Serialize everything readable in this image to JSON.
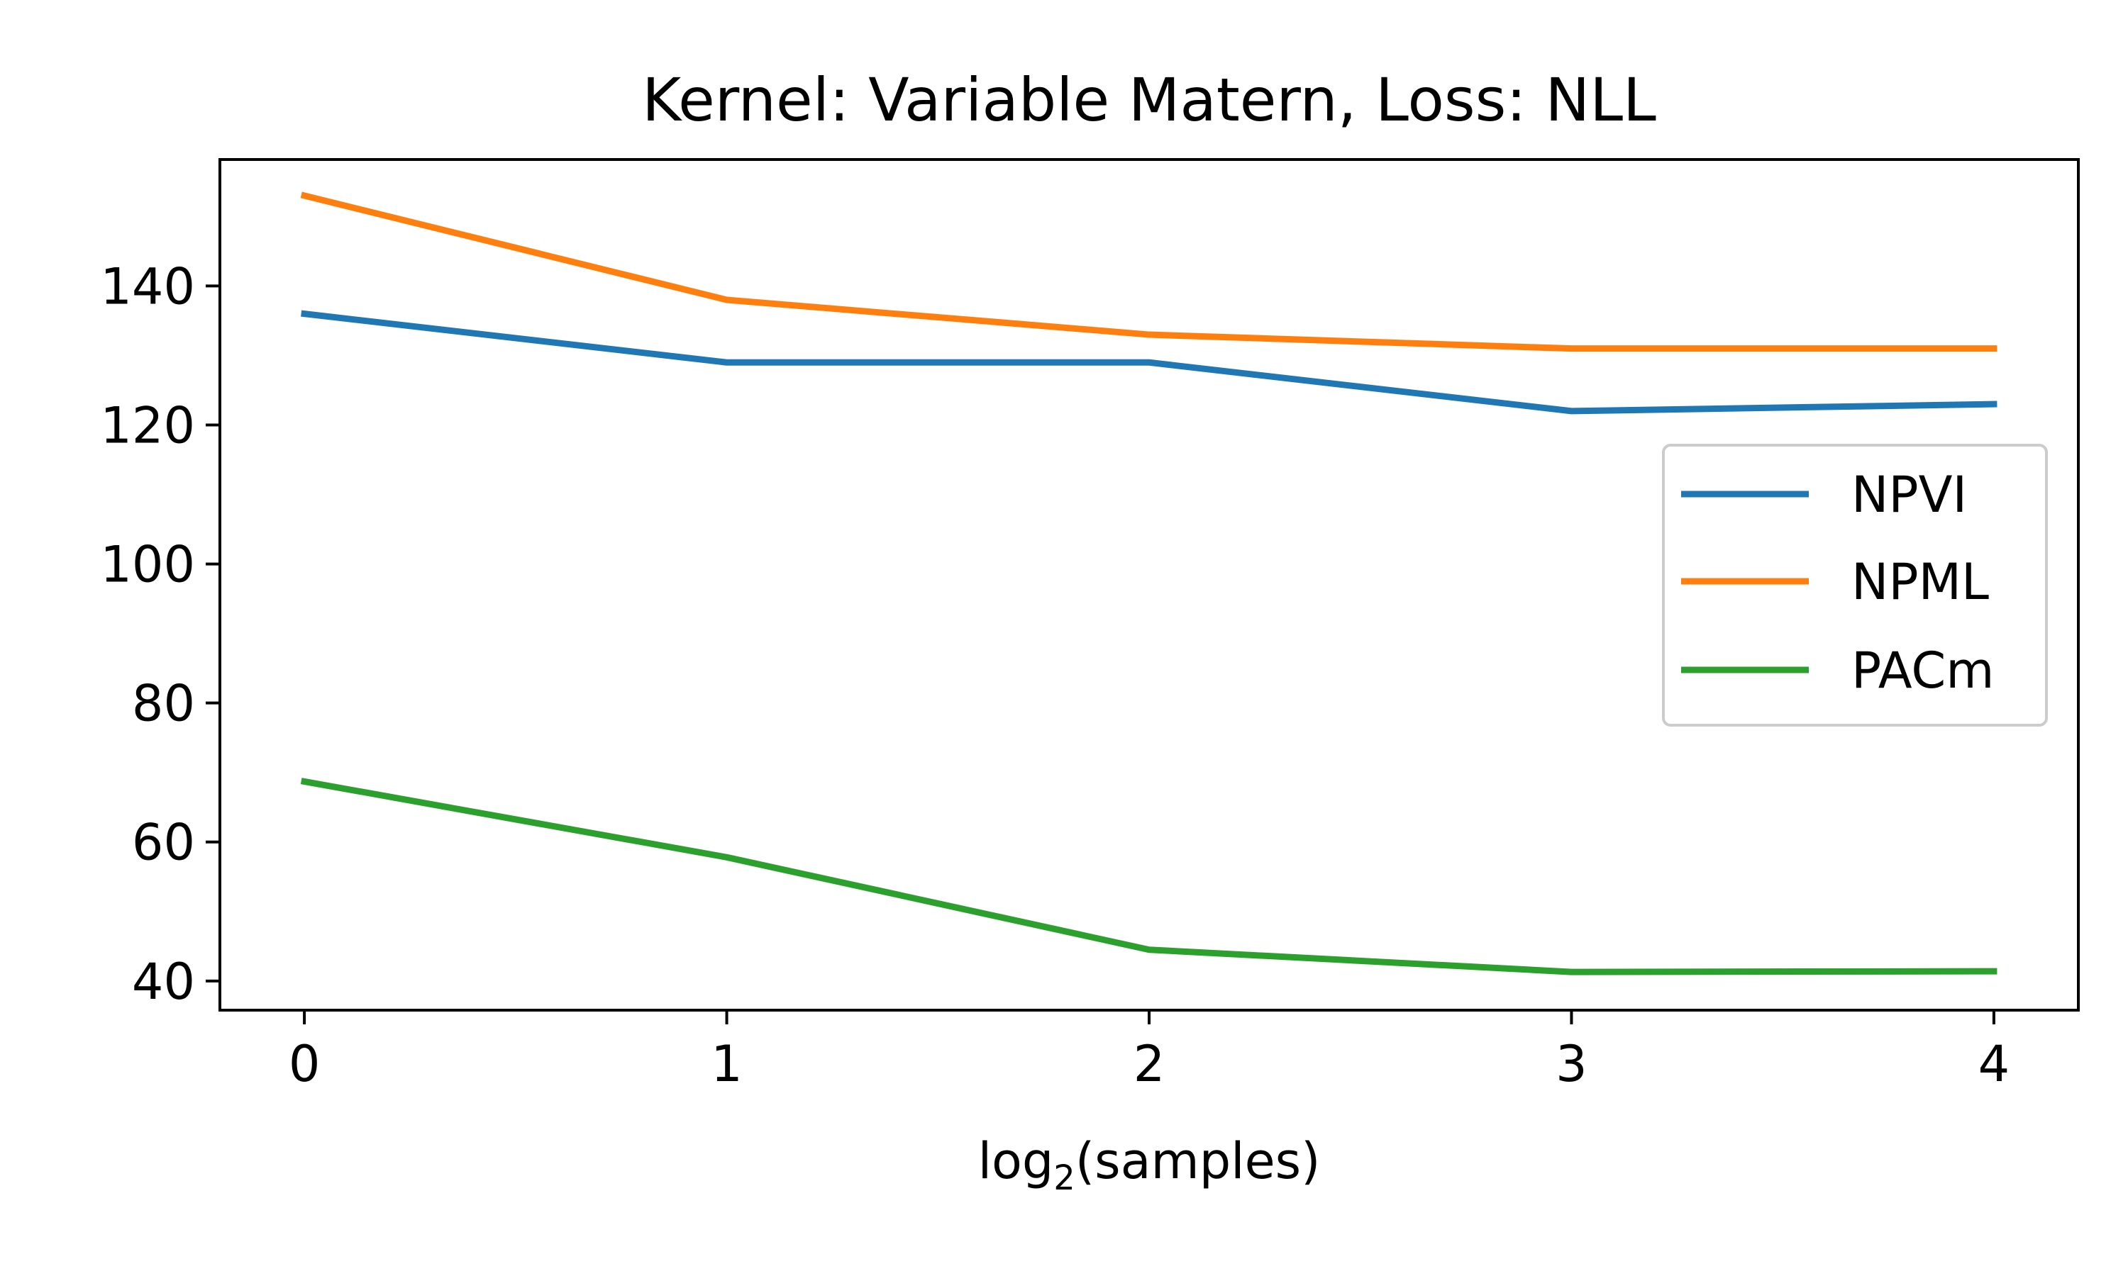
{
  "chart_data": {
    "type": "line",
    "title": "Kernel: Variable Matern, Loss: NLL",
    "xlabel": {
      "prefix": "log",
      "subscript": "2",
      "suffix": "(samples)"
    },
    "ylabel": "",
    "x": [
      0,
      1,
      2,
      3,
      4
    ],
    "xticks": [
      "0",
      "1",
      "2",
      "3",
      "4"
    ],
    "yticks": [
      40,
      60,
      80,
      100,
      120,
      140
    ],
    "xlim": [
      -0.2,
      4.2
    ],
    "ylim": [
      35.8,
      158.2
    ],
    "grid": false,
    "legend_position": "center-right",
    "series": [
      {
        "name": "NPVI",
        "color": "#1f77b4",
        "values": [
          136,
          129,
          129,
          122,
          123
        ]
      },
      {
        "name": "NPML",
        "color": "#ff7f0e",
        "values": [
          153,
          138,
          133,
          131,
          131
        ]
      },
      {
        "name": "PACm",
        "color": "#2ca02c",
        "values": [
          68.7,
          57.8,
          44.5,
          41.3,
          41.4
        ]
      }
    ]
  }
}
